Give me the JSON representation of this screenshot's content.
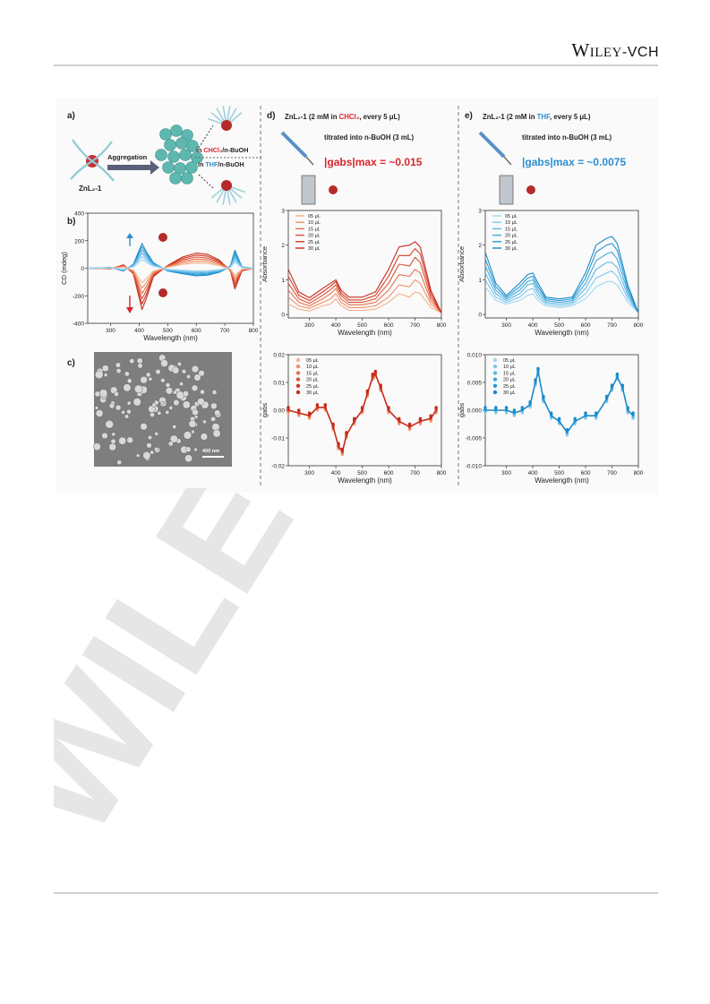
{
  "header": {
    "brand_w": "W",
    "brand_iley": "ILEY",
    "brand_dash": "-",
    "brand_vch": "VCH"
  },
  "watermark": "WILEY",
  "panel_a": {
    "label": "a)",
    "molecule": "ZnL₂-1",
    "arrow_text": "Aggregation",
    "cond_1": "in CHCl₃/n-BuOH",
    "cond_1_hl": "CHCl₃",
    "cond_2": "in THF/n-BuOH",
    "cond_2_hl": "THF"
  },
  "panel_b": {
    "label": "b)",
    "ylabel": "CD (mdeg)",
    "xlabel": "Wavelength (nm)",
    "yticks": [
      "400",
      "200",
      "0",
      "-200",
      "-400"
    ],
    "xticks": [
      "300",
      "400",
      "500",
      "600",
      "700",
      "800"
    ]
  },
  "panel_c": {
    "label": "c)",
    "scalebar": "400 nm"
  },
  "panel_d": {
    "label": "d)",
    "title_line1": "ZnL₂-1 (2 mM in CHCl₃, every 5 μL)",
    "title_line2": "titrated into n-BuOH (3 mL)",
    "gabs_value": "|gabs|max = ~0.015",
    "legend": [
      "05 μL",
      "10 μL",
      "15 μL",
      "20 μL",
      "25 μL",
      "30 μL"
    ]
  },
  "panel_e": {
    "label": "e)",
    "title_line1": "ZnL₂-1 (2 mM in THF, every 5 μL)",
    "title_line2": "titrated into n-BuOH (3 mL)",
    "gabs_value": "|gabs|max = ~0.0075",
    "legend": [
      "05 μL",
      "10 μL",
      "15 μL",
      "20 μL",
      "25 μL",
      "30 μL"
    ]
  },
  "abs_axes": {
    "ylabel": "Absorbance",
    "xlabel": "Wavelength (nm)",
    "yticks": [
      "3",
      "2",
      "1",
      "0"
    ],
    "xticks": [
      "300",
      "400",
      "500",
      "600",
      "700",
      "800"
    ]
  },
  "g_axes": {
    "ylabel": "gabs",
    "xlabel": "Wavelength (nm)",
    "d_yticks": [
      "0.02",
      "0.01",
      "0.00",
      "-0.01",
      "-0.02"
    ],
    "e_yticks": [
      "0.010",
      "0.005",
      "0.000",
      "-0.005",
      "-0.010"
    ],
    "xticks": [
      "300",
      "400",
      "500",
      "600",
      "700",
      "800"
    ]
  },
  "colors": {
    "red_series": [
      "#f4b08a",
      "#ee9068",
      "#e6704a",
      "#dd5236",
      "#d33a26",
      "#c62a1c"
    ],
    "blue_series": [
      "#9fd6f2",
      "#7cc6ec",
      "#5bb7e5",
      "#3fa8dd",
      "#2a98d3",
      "#1a8ac8"
    ],
    "accent_red": "#d8272b",
    "accent_blue": "#2b8fd0"
  },
  "chart_data": [
    {
      "type": "line",
      "panel": "b",
      "xlim": [
        220,
        800
      ],
      "ylim": [
        -400,
        400
      ],
      "x": [
        220,
        300,
        345,
        380,
        410,
        425,
        450,
        500,
        550,
        600,
        640,
        680,
        700,
        720,
        735,
        760,
        800
      ],
      "series": [
        {
          "values": [
            0,
            -5,
            25,
            -40,
            -300,
            -220,
            -60,
            20,
            80,
            110,
            100,
            60,
            20,
            -20,
            -150,
            -20,
            0
          ]
        },
        {
          "values": [
            0,
            5,
            -20,
            30,
            180,
            120,
            40,
            -20,
            -40,
            -55,
            -50,
            -30,
            -10,
            20,
            130,
            10,
            0
          ]
        }
      ]
    },
    {
      "type": "line",
      "panel": "d-absorbance",
      "xlim": [
        220,
        800
      ],
      "ylim": [
        -0.1,
        3
      ],
      "x": [
        220,
        260,
        300,
        350,
        380,
        400,
        420,
        450,
        500,
        550,
        600,
        640,
        680,
        700,
        720,
        760,
        800
      ],
      "series": [
        {
          "name": "05 μL",
          "values": [
            0.3,
            0.15,
            0.1,
            0.25,
            0.3,
            0.45,
            0.25,
            0.12,
            0.12,
            0.15,
            0.35,
            0.6,
            0.5,
            0.65,
            0.6,
            0.2,
            0.05
          ]
        },
        {
          "name": "10 μL",
          "values": [
            0.5,
            0.25,
            0.18,
            0.35,
            0.45,
            0.6,
            0.35,
            0.2,
            0.2,
            0.25,
            0.5,
            0.85,
            0.8,
            1.0,
            0.9,
            0.3,
            0.05
          ]
        },
        {
          "name": "15 μL",
          "values": [
            0.7,
            0.35,
            0.25,
            0.45,
            0.6,
            0.75,
            0.45,
            0.28,
            0.28,
            0.35,
            0.7,
            1.15,
            1.1,
            1.3,
            1.2,
            0.4,
            0.05
          ]
        },
        {
          "name": "20 μL",
          "values": [
            0.9,
            0.45,
            0.32,
            0.55,
            0.72,
            0.85,
            0.55,
            0.35,
            0.35,
            0.45,
            0.9,
            1.45,
            1.4,
            1.65,
            1.5,
            0.5,
            0.05
          ]
        },
        {
          "name": "25 μL",
          "values": [
            1.1,
            0.55,
            0.4,
            0.65,
            0.82,
            0.95,
            0.62,
            0.42,
            0.42,
            0.55,
            1.1,
            1.7,
            1.7,
            1.9,
            1.75,
            0.6,
            0.05
          ]
        },
        {
          "name": "30 μL",
          "values": [
            1.3,
            0.65,
            0.48,
            0.75,
            0.9,
            1.0,
            0.7,
            0.5,
            0.5,
            0.65,
            1.3,
            1.95,
            2.0,
            2.1,
            1.95,
            0.7,
            0.05
          ]
        }
      ]
    },
    {
      "type": "line",
      "panel": "e-absorbance",
      "xlim": [
        220,
        800
      ],
      "ylim": [
        -0.1,
        3
      ],
      "x": [
        220,
        260,
        300,
        350,
        380,
        400,
        420,
        450,
        500,
        550,
        600,
        640,
        680,
        700,
        720,
        760,
        800
      ],
      "series": [
        {
          "name": "05 μL",
          "values": [
            0.8,
            0.4,
            0.3,
            0.4,
            0.55,
            0.6,
            0.4,
            0.25,
            0.2,
            0.25,
            0.45,
            0.8,
            0.95,
            0.95,
            0.85,
            0.35,
            0.05
          ]
        },
        {
          "name": "10 μL",
          "values": [
            1.0,
            0.5,
            0.35,
            0.5,
            0.7,
            0.75,
            0.5,
            0.3,
            0.25,
            0.3,
            0.6,
            1.05,
            1.2,
            1.25,
            1.1,
            0.45,
            0.05
          ]
        },
        {
          "name": "15 μL",
          "values": [
            1.2,
            0.6,
            0.4,
            0.6,
            0.85,
            0.9,
            0.6,
            0.35,
            0.3,
            0.35,
            0.75,
            1.3,
            1.5,
            1.5,
            1.35,
            0.55,
            0.05
          ]
        },
        {
          "name": "20 μL",
          "values": [
            1.4,
            0.7,
            0.45,
            0.7,
            0.95,
            1.0,
            0.7,
            0.4,
            0.35,
            0.4,
            0.9,
            1.55,
            1.75,
            1.8,
            1.6,
            0.65,
            0.05
          ]
        },
        {
          "name": "25 μL",
          "values": [
            1.6,
            0.8,
            0.5,
            0.8,
            1.05,
            1.1,
            0.8,
            0.45,
            0.4,
            0.45,
            1.05,
            1.8,
            2.0,
            2.05,
            1.85,
            0.75,
            0.05
          ]
        },
        {
          "name": "30 μL",
          "values": [
            1.8,
            0.9,
            0.55,
            0.9,
            1.15,
            1.2,
            0.9,
            0.5,
            0.45,
            0.5,
            1.2,
            2.0,
            2.2,
            2.25,
            2.05,
            0.85,
            0.05
          ]
        }
      ]
    },
    {
      "type": "scatter",
      "panel": "d-gabs",
      "xlim": [
        220,
        800
      ],
      "ylim": [
        -0.02,
        0.02
      ],
      "x": [
        220,
        260,
        300,
        330,
        360,
        390,
        410,
        425,
        440,
        470,
        500,
        520,
        540,
        550,
        570,
        600,
        640,
        680,
        720,
        760,
        780
      ],
      "series": [
        {
          "values": [
            0.0,
            -0.001,
            -0.002,
            0.001,
            0.001,
            -0.006,
            -0.013,
            -0.015,
            -0.009,
            -0.004,
            0.0,
            0.006,
            0.012,
            0.013,
            0.008,
            0.0,
            -0.004,
            -0.006,
            -0.004,
            -0.003,
            0.0
          ]
        }
      ]
    },
    {
      "type": "scatter",
      "panel": "e-gabs",
      "xlim": [
        220,
        800
      ],
      "ylim": [
        -0.01,
        0.01
      ],
      "x": [
        220,
        260,
        300,
        330,
        360,
        390,
        410,
        420,
        440,
        470,
        500,
        530,
        560,
        600,
        640,
        680,
        700,
        720,
        740,
        760,
        780
      ],
      "series": [
        {
          "values": [
            0.0,
            0.0,
            0.0,
            -0.0005,
            0.0,
            0.001,
            0.005,
            0.007,
            0.002,
            -0.001,
            -0.002,
            -0.004,
            -0.002,
            -0.001,
            -0.001,
            0.002,
            0.004,
            0.006,
            0.004,
            0.0,
            -0.001
          ]
        }
      ]
    }
  ]
}
